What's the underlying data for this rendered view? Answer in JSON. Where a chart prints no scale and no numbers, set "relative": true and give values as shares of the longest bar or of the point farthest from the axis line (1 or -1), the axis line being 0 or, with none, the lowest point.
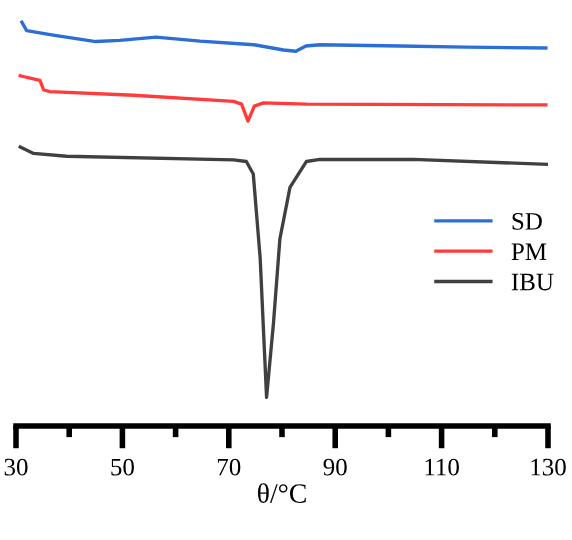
{
  "chart_data": {
    "type": "line",
    "relative": true,
    "xlabel": "θ/°C",
    "xlim": [
      30,
      130
    ],
    "xticks": [
      30,
      {
        "value": 40,
        "label": null
      },
      50,
      {
        "value": 60,
        "label": null
      },
      70,
      {
        "value": 80,
        "label": null
      },
      90,
      {
        "value": 100,
        "label": null
      },
      110,
      {
        "value": 120,
        "label": null
      },
      130
    ],
    "legend": "right",
    "grid": false,
    "tick_labels": "x",
    "series": [
      {
        "name": "SD",
        "color": "#2b6fd6",
        "x": [
          31.1,
          32.0,
          37.0,
          45.0,
          49.5,
          56.3,
          64.6,
          74.7,
          80.3,
          82.6,
          84.5,
          87.1,
          102.2,
          114.6,
          129.6
        ],
        "values": [
          1.0,
          0.979,
          0.968,
          0.952,
          0.955,
          0.963,
          0.953,
          0.944,
          0.931,
          0.928,
          0.941,
          0.944,
          0.941,
          0.938,
          0.936
        ]
      },
      {
        "name": "PM",
        "color": "#ff3b3b",
        "x": [
          30.8,
          34.5,
          35.2,
          36.4,
          52.1,
          70.9,
          72.4,
          73.6,
          74.8,
          76.5,
          84.6,
          129.6
        ],
        "values": [
          0.867,
          0.856,
          0.832,
          0.828,
          0.819,
          0.804,
          0.797,
          0.755,
          0.792,
          0.8,
          0.797,
          0.795
        ]
      },
      {
        "name": "IBU",
        "color": "#404040",
        "x": [
          30.8,
          33.3,
          39.5,
          70.9,
          73.3,
          74.6,
          75.9,
          77.1,
          78.4,
          79.6,
          81.5,
          84.6,
          87.1,
          104.7,
          129.7
        ],
        "values": [
          0.691,
          0.675,
          0.668,
          0.659,
          0.655,
          0.624,
          0.415,
          0.071,
          0.255,
          0.463,
          0.591,
          0.655,
          0.66,
          0.66,
          0.648
        ]
      }
    ]
  }
}
